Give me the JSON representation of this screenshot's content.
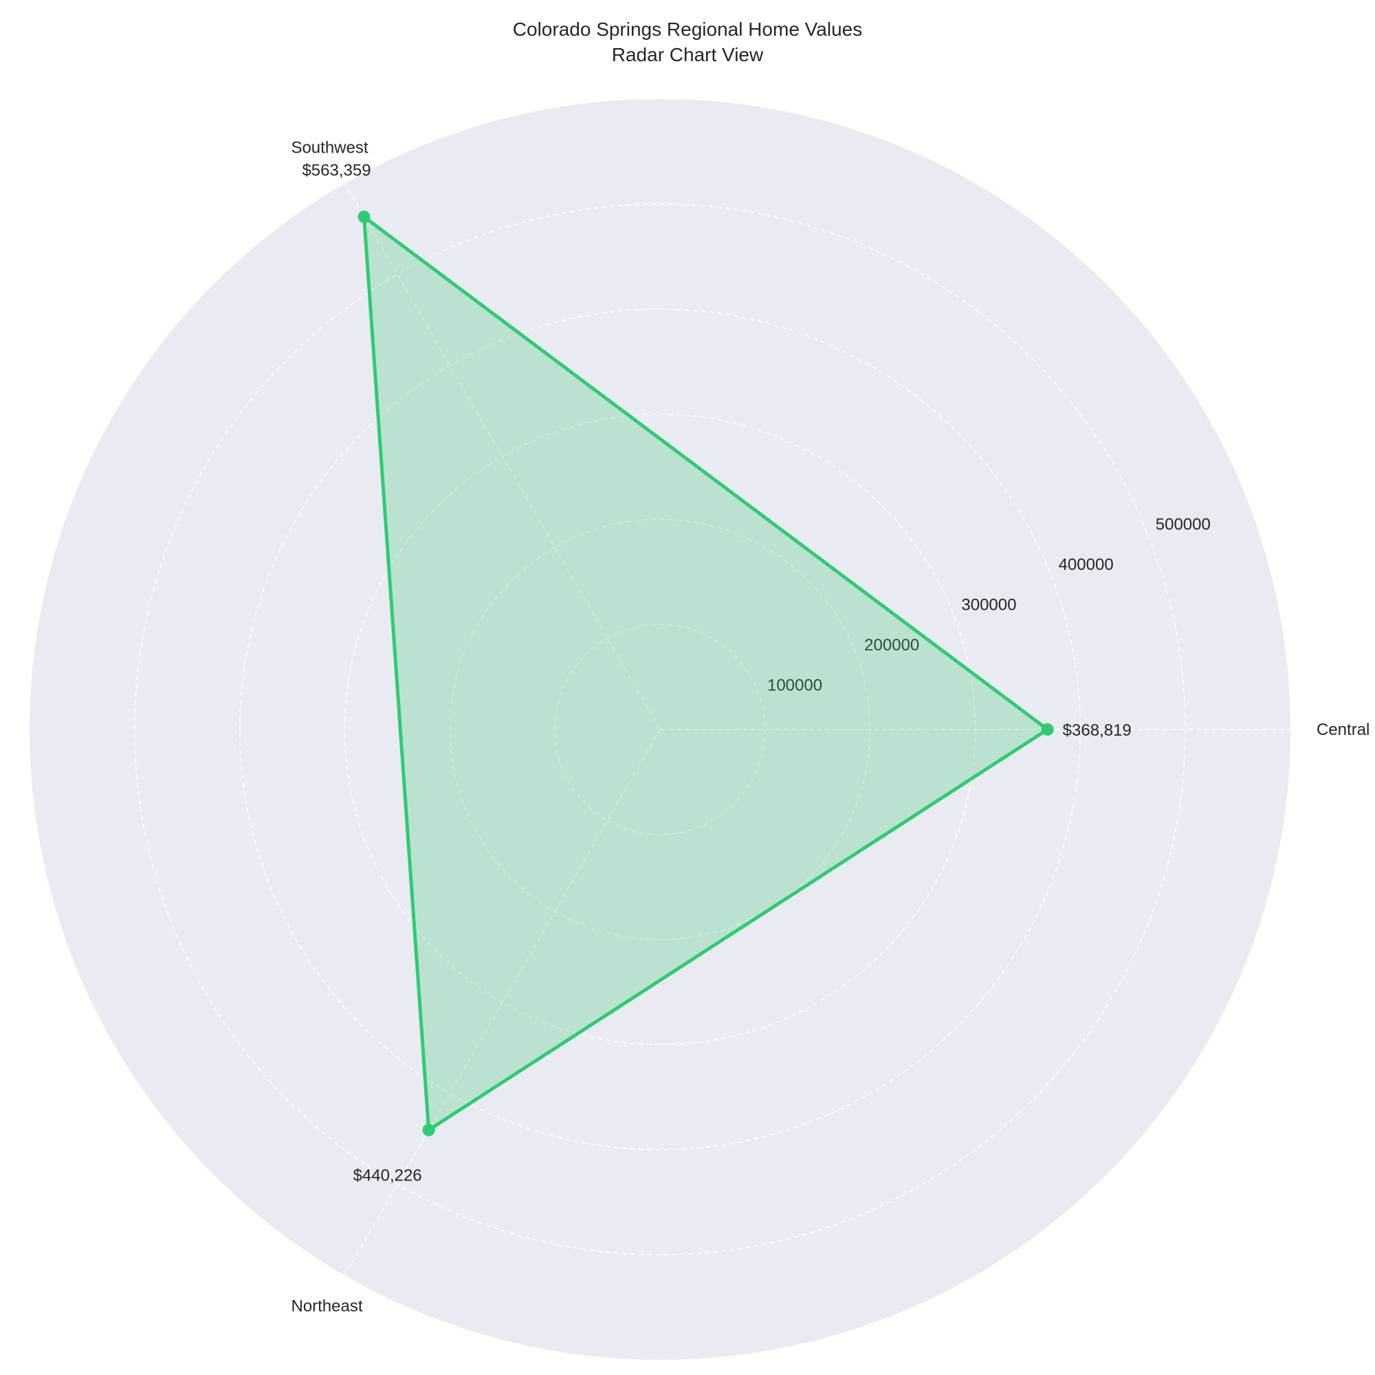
{
  "chart_data": {
    "type": "radar",
    "title_lines": [
      "Colorado Springs Regional Home Values",
      "Radar Chart View"
    ],
    "categories": [
      "Central",
      "Southwest",
      "Northeast"
    ],
    "values": [
      368819,
      563359,
      440226
    ],
    "value_labels": [
      "$368,819",
      "$563,359",
      "$440,226"
    ],
    "radial_ticks": [
      100000,
      200000,
      300000,
      400000,
      500000
    ],
    "radial_tick_labels": [
      "100000",
      "200000",
      "300000",
      "400000",
      "500000"
    ],
    "rlim": [
      0,
      600000
    ],
    "grid": true,
    "grid_style": "dashed",
    "colors": {
      "series": "#2ecc71",
      "fill": "#2ecc71",
      "background": "#eaeaf2",
      "grid": "#ffffff",
      "text": "#262626"
    }
  }
}
